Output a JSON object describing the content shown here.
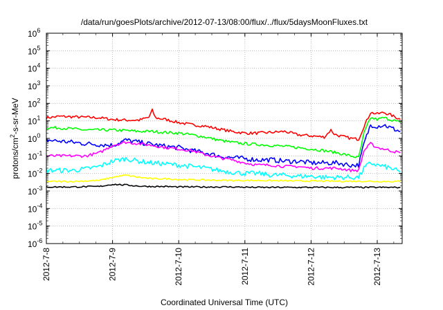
{
  "chart_data": {
    "type": "line",
    "title": "/data/run/goesPlots/archive/2012-07-13/08:00/flux/../flux/5daysMoonFluxes.txt",
    "xlabel": "Coordinated Universal Time (UTC)",
    "ylabel": "protons/cm²-s-sr-MeV",
    "ylabel_parts": [
      "protons/cm",
      "2",
      "-s-sr-MeV"
    ],
    "yscale": "log",
    "ylim_exp": [
      -6,
      6
    ],
    "xlim_days": [
      0,
      5.35
    ],
    "x_tick_labels": [
      "2012-7-8",
      "2012-7-9",
      "2012-7-10",
      "2012-7-11",
      "2012-7-12",
      "2012-7-13"
    ],
    "y_tick_labels": [
      {
        "base": "10",
        "exp": "-6"
      },
      {
        "base": "10",
        "exp": "-5"
      },
      {
        "base": "10",
        "exp": "-4"
      },
      {
        "base": "10",
        "exp": "-3"
      },
      {
        "base": "10",
        "exp": "-2"
      },
      {
        "base": "10",
        "exp": "-1"
      },
      {
        "base": "10",
        "exp": "0"
      },
      {
        "base": "10",
        "exp": "1"
      },
      {
        "base": "10",
        "exp": "2"
      },
      {
        "base": "10",
        "exp": "3"
      },
      {
        "base": "10",
        "exp": "4"
      },
      {
        "base": "10",
        "exp": "5"
      },
      {
        "base": "10",
        "exp": "6"
      }
    ],
    "grid": true,
    "series": [
      {
        "color": "#ff0000",
        "x": [
          0,
          0.2,
          0.4,
          0.6,
          0.8,
          1.0,
          1.2,
          1.4,
          1.55,
          1.6,
          1.65,
          1.8,
          2.0,
          2.2,
          2.4,
          2.6,
          2.8,
          3.0,
          3.2,
          3.4,
          3.6,
          3.8,
          4.0,
          4.2,
          4.3,
          4.35,
          4.4,
          4.6,
          4.72,
          4.8,
          4.9,
          5.0,
          5.1,
          5.2,
          5.35
        ],
        "y": [
          15,
          18,
          17,
          16,
          15,
          12,
          11,
          11,
          16,
          40,
          15,
          12,
          8,
          6,
          5,
          3.5,
          2.5,
          2,
          2,
          2.2,
          2.5,
          1.6,
          1.4,
          1.2,
          3,
          1.8,
          1.5,
          1,
          0.9,
          5,
          30,
          25,
          30,
          22,
          12
        ]
      },
      {
        "color": "#00ff00",
        "x": [
          0,
          0.2,
          0.4,
          0.6,
          0.8,
          1.0,
          1.2,
          1.4,
          1.6,
          1.8,
          2.0,
          2.2,
          2.4,
          2.6,
          2.8,
          3.0,
          3.2,
          3.4,
          3.6,
          3.8,
          4.0,
          4.2,
          4.4,
          4.6,
          4.72,
          4.8,
          4.9,
          5.0,
          5.1,
          5.2,
          5.35
        ],
        "y": [
          4,
          4,
          3.5,
          3,
          3,
          3,
          2.8,
          2.5,
          2.5,
          2.2,
          2,
          1.6,
          1.2,
          0.8,
          0.6,
          0.5,
          0.45,
          0.4,
          0.35,
          0.3,
          0.25,
          0.2,
          0.15,
          0.1,
          0.08,
          2,
          15,
          12,
          15,
          12,
          8
        ]
      },
      {
        "color": "#0000ff",
        "x": [
          0,
          0.2,
          0.4,
          0.6,
          0.8,
          1.0,
          1.2,
          1.4,
          1.6,
          1.8,
          2.0,
          2.2,
          2.4,
          2.6,
          2.8,
          3.0,
          3.2,
          3.4,
          3.6,
          3.8,
          4.0,
          4.2,
          4.4,
          4.6,
          4.72,
          4.8,
          4.9,
          5.0,
          5.1,
          5.2,
          5.35
        ],
        "y": [
          0.8,
          0.7,
          0.6,
          0.5,
          0.45,
          0.4,
          0.8,
          0.6,
          0.45,
          0.35,
          0.3,
          0.2,
          0.15,
          0.1,
          0.08,
          0.07,
          0.06,
          0.06,
          0.05,
          0.05,
          0.04,
          0.04,
          0.04,
          0.03,
          0.03,
          0.5,
          6,
          5,
          6,
          4,
          2.5
        ]
      },
      {
        "color": "#ff00ff",
        "x": [
          0,
          0.2,
          0.4,
          0.6,
          0.8,
          1.0,
          1.2,
          1.4,
          1.6,
          1.8,
          2.0,
          2.2,
          2.4,
          2.6,
          2.8,
          3.0,
          3.2,
          3.4,
          3.6,
          3.8,
          4.0,
          4.2,
          4.4,
          4.6,
          4.72,
          4.8,
          4.9,
          5.0,
          5.1,
          5.2,
          5.35
        ],
        "y": [
          0.1,
          0.1,
          0.1,
          0.1,
          0.15,
          0.4,
          0.6,
          0.5,
          0.4,
          0.3,
          0.25,
          0.2,
          0.12,
          0.08,
          0.06,
          0.04,
          0.03,
          0.03,
          0.025,
          0.025,
          0.02,
          0.02,
          0.02,
          0.015,
          0.015,
          0.2,
          0.5,
          0.3,
          0.25,
          0.2,
          0.15
        ]
      },
      {
        "color": "#00ffff",
        "x": [
          0,
          0.2,
          0.4,
          0.6,
          0.8,
          1.0,
          1.2,
          1.4,
          1.6,
          1.8,
          2.0,
          2.2,
          2.4,
          2.6,
          2.8,
          3.0,
          3.2,
          3.4,
          3.6,
          3.8,
          4.0,
          4.2,
          4.4,
          4.6,
          4.72,
          4.8,
          4.9,
          5.0,
          5.1,
          5.2,
          5.35
        ],
        "y": [
          0.015,
          0.015,
          0.015,
          0.018,
          0.025,
          0.05,
          0.07,
          0.05,
          0.04,
          0.035,
          0.03,
          0.025,
          0.02,
          0.015,
          0.012,
          0.01,
          0.01,
          0.008,
          0.008,
          0.007,
          0.007,
          0.006,
          0.006,
          0.006,
          0.006,
          0.02,
          0.04,
          0.03,
          0.025,
          0.02,
          0.012
        ]
      },
      {
        "color": "#ffff00",
        "x": [
          0,
          0.4,
          0.8,
          1.0,
          1.2,
          1.4,
          1.6,
          1.8,
          2.0,
          2.4,
          2.8,
          3.2,
          3.6,
          4.0,
          4.4,
          4.8,
          5.0,
          5.35
        ],
        "y": [
          0.0035,
          0.0035,
          0.004,
          0.006,
          0.008,
          0.006,
          0.005,
          0.005,
          0.0045,
          0.0042,
          0.004,
          0.004,
          0.0038,
          0.0037,
          0.0036,
          0.0036,
          0.0035,
          0.0035
        ]
      },
      {
        "color": "#000000",
        "x": [
          0,
          0.4,
          0.8,
          1.0,
          1.2,
          1.4,
          1.6,
          1.8,
          2.0,
          2.4,
          2.8,
          3.2,
          3.6,
          4.0,
          4.4,
          4.8,
          5.0,
          5.35
        ],
        "y": [
          0.0017,
          0.0017,
          0.0018,
          0.0024,
          0.0022,
          0.0019,
          0.0018,
          0.0018,
          0.0017,
          0.0017,
          0.0017,
          0.0016,
          0.0016,
          0.0016,
          0.0016,
          0.0016,
          0.0016,
          0.0016
        ]
      }
    ]
  }
}
